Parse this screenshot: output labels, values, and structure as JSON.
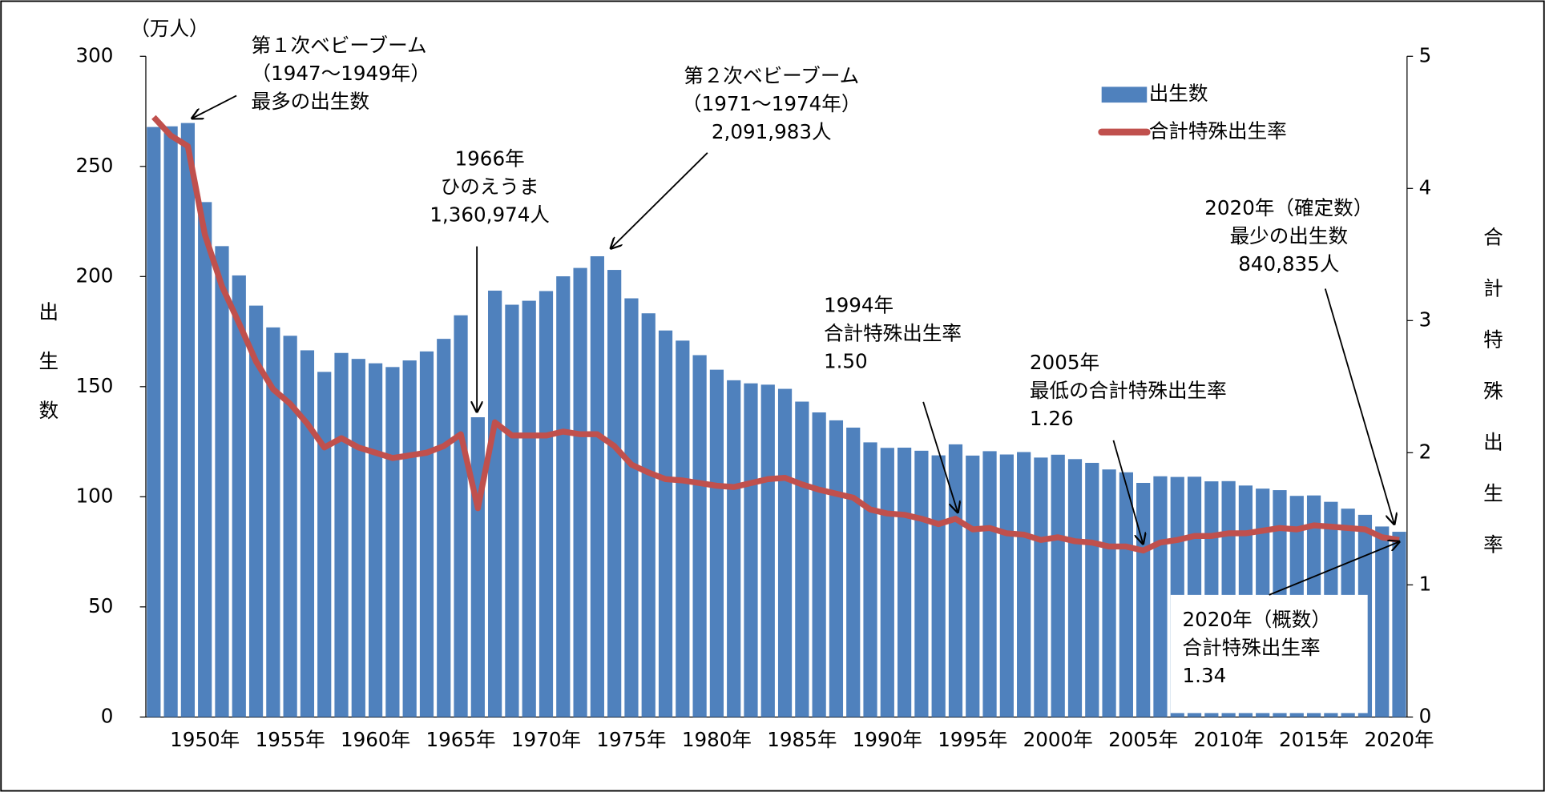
{
  "chart_data": {
    "type": "bar-line",
    "y_label_unit": "（万人）",
    "y_label": "出生数",
    "y2_label": "合計特殊出生率",
    "categories": [
      null,
      null,
      null,
      "1950年",
      null,
      null,
      null,
      null,
      "1955年",
      null,
      null,
      null,
      null,
      "1960年",
      null,
      null,
      null,
      null,
      "1965年",
      null,
      null,
      null,
      null,
      "1970年",
      null,
      null,
      null,
      null,
      "1975年",
      null,
      null,
      null,
      null,
      "1980年",
      null,
      null,
      null,
      null,
      "1985年",
      null,
      null,
      null,
      null,
      "1990年",
      null,
      null,
      null,
      null,
      "1995年",
      null,
      null,
      null,
      null,
      "2000年",
      null,
      null,
      null,
      null,
      "2005年",
      null,
      null,
      null,
      null,
      "2010年",
      null,
      null,
      null,
      null,
      "2015年",
      null,
      null,
      null,
      null,
      "2020年"
    ],
    "series": [
      {
        "name": "出生数",
        "type": "bar",
        "color": "#4f81bd",
        "values": [
          267.9,
          268.2,
          269.7,
          233.8,
          213.8,
          200.5,
          186.8,
          176.9,
          173.1,
          166.5,
          156.7,
          165.3,
          162.6,
          160.6,
          158.9,
          161.9,
          166.0,
          171.7,
          182.4,
          136.1,
          193.6,
          187.2,
          189.0,
          193.4,
          200.1,
          203.9,
          209.2,
          203.0,
          190.1,
          183.3,
          175.5,
          170.9,
          164.3,
          157.7,
          152.9,
          151.5,
          150.9,
          149.0,
          143.2,
          138.3,
          134.7,
          131.4,
          124.7,
          122.2,
          122.3,
          120.9,
          118.8,
          123.8,
          118.7,
          120.7,
          119.2,
          120.3,
          117.8,
          119.1,
          117.1,
          115.4,
          112.4,
          111.1,
          106.3,
          109.3,
          109.0,
          109.1,
          107.0,
          107.1,
          105.1,
          103.7,
          103.0,
          100.4,
          100.6,
          97.7,
          94.6,
          91.8,
          86.5,
          84.1
        ]
      },
      {
        "name": "合計特殊出生率",
        "type": "line",
        "axis": "y2",
        "color": "#c0504d",
        "values": [
          4.54,
          4.4,
          4.32,
          3.65,
          3.26,
          2.98,
          2.69,
          2.48,
          2.37,
          2.22,
          2.04,
          2.11,
          2.04,
          2.0,
          1.96,
          1.98,
          2.0,
          2.05,
          2.14,
          1.58,
          2.23,
          2.13,
          2.13,
          2.13,
          2.16,
          2.14,
          2.14,
          2.05,
          1.91,
          1.85,
          1.8,
          1.79,
          1.77,
          1.75,
          1.74,
          1.77,
          1.8,
          1.81,
          1.76,
          1.72,
          1.69,
          1.66,
          1.57,
          1.54,
          1.53,
          1.5,
          1.46,
          1.5,
          1.42,
          1.43,
          1.39,
          1.38,
          1.34,
          1.36,
          1.33,
          1.32,
          1.29,
          1.29,
          1.26,
          1.32,
          1.34,
          1.37,
          1.37,
          1.39,
          1.39,
          1.41,
          1.43,
          1.42,
          1.45,
          1.44,
          1.43,
          1.42,
          1.36,
          1.34
        ]
      }
    ],
    "ylim": [
      0,
      300
    ],
    "yticks": [
      0,
      50,
      100,
      150,
      200,
      250,
      300
    ],
    "y2lim": [
      0,
      5
    ],
    "y2ticks": [
      0,
      1,
      2,
      3,
      4,
      5
    ],
    "legend": "top-right",
    "annotations": [
      {
        "lines": [
          "第１次ベビーブーム",
          "（1947～1949年）",
          "最多の出生数"
        ]
      },
      {
        "lines": [
          "第２次ベビーブーム",
          "（1971～1974年）",
          "2,091,983人"
        ]
      },
      {
        "lines": [
          "1966年",
          "ひのえうま",
          "1,360,974人"
        ]
      },
      {
        "lines": [
          "1994年",
          "合計特殊出生率",
          "1.50"
        ]
      },
      {
        "lines": [
          "2005年",
          "最低の合計特殊出生率",
          "1.26"
        ]
      },
      {
        "lines": [
          "2020年（確定数）",
          "最少の出生数",
          "840,835人"
        ]
      },
      {
        "lines": [
          "2020年（概数）",
          "合計特殊出生率",
          "1.34"
        ]
      }
    ]
  }
}
